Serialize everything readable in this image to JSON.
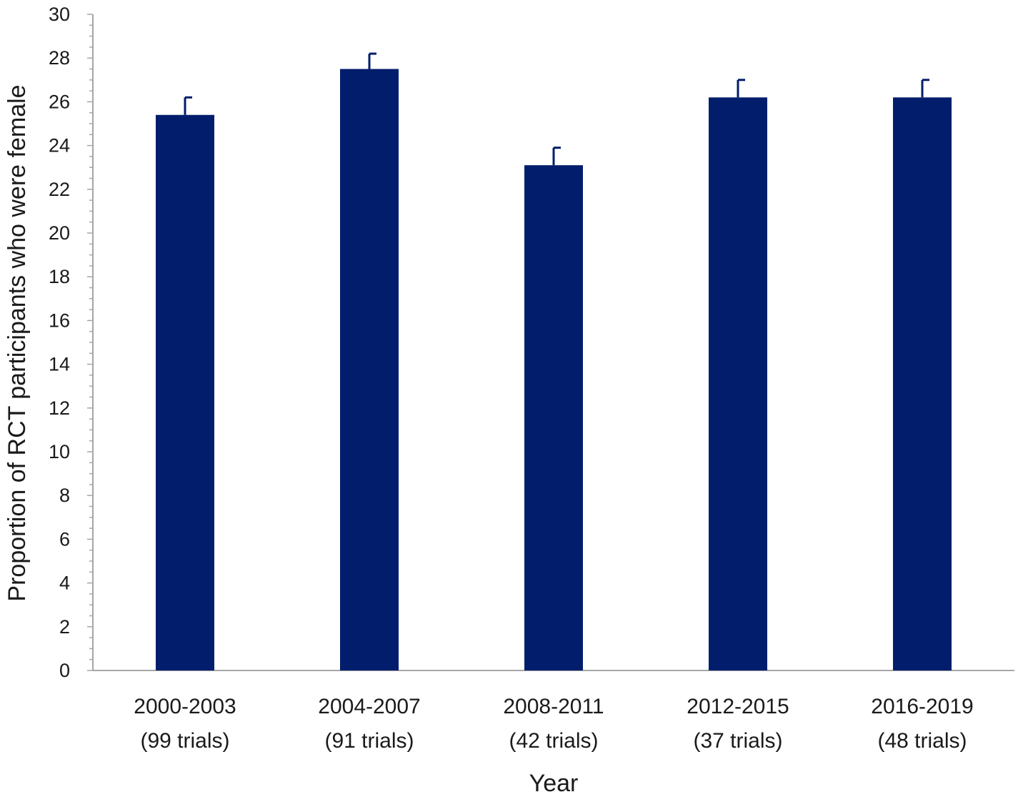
{
  "chart_data": {
    "type": "bar",
    "xlabel": "Year",
    "ylabel": "Proportion of RCT participants who were female",
    "ylim": [
      0,
      30
    ],
    "y_ticks": [
      0,
      2,
      4,
      6,
      8,
      10,
      12,
      14,
      16,
      18,
      20,
      22,
      24,
      26,
      28,
      30
    ],
    "categories": [
      [
        "2000-2003",
        "(99 trials)"
      ],
      [
        "2004-2007",
        "(91 trials)"
      ],
      [
        "2008-2011",
        "(42 trials)"
      ],
      [
        "2012-2015",
        "(37 trials)"
      ],
      [
        "2016-2019",
        "(48 trials)"
      ]
    ],
    "values": [
      25.4,
      27.5,
      23.1,
      26.2,
      26.2
    ],
    "error_upper": [
      0.8,
      0.7,
      0.8,
      0.8,
      0.8
    ],
    "grid": false,
    "legend": "none",
    "colors": {
      "bar": "#021d6b",
      "axis": "#a6a6a6",
      "error_bar": "#021d6b"
    }
  }
}
